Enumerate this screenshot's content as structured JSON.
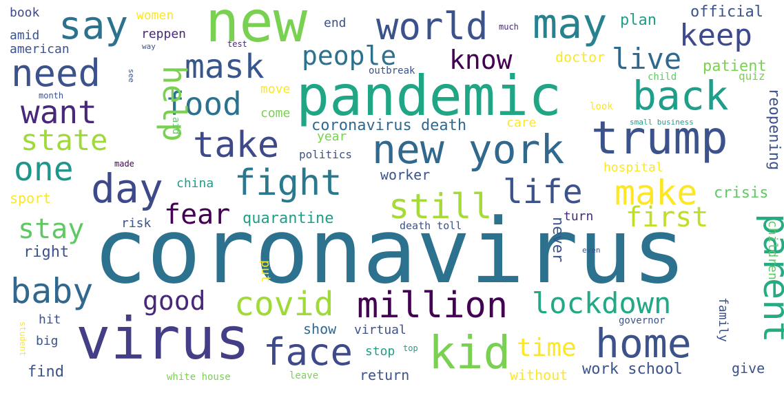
{
  "words": [
    {
      "text": "coronavirus",
      "color": "#2c718e"
    },
    {
      "text": "pandemic",
      "color": "#21a685"
    },
    {
      "text": "virus",
      "color": "#433e85"
    },
    {
      "text": "new",
      "color": "#7ad151"
    },
    {
      "text": "trump",
      "color": "#3b528b"
    },
    {
      "text": "new york",
      "color": "#31688e"
    },
    {
      "text": "million",
      "color": "#440154"
    },
    {
      "text": "kid",
      "color": "#7ad151"
    },
    {
      "text": "home",
      "color": "#3b528b"
    },
    {
      "text": "face",
      "color": "#3e4a89"
    },
    {
      "text": "may",
      "color": "#26828e"
    },
    {
      "text": "say",
      "color": "#2c728e"
    },
    {
      "text": "world",
      "color": "#3b528b"
    },
    {
      "text": "back",
      "color": "#1f9e89"
    },
    {
      "text": "need",
      "color": "#3b528b"
    },
    {
      "text": "mask",
      "color": "#39568c"
    },
    {
      "text": "take",
      "color": "#3e4989"
    },
    {
      "text": "want",
      "color": "#482878"
    },
    {
      "text": "day",
      "color": "#3e4989"
    },
    {
      "text": "one",
      "color": "#1f968b"
    },
    {
      "text": "fight",
      "color": "#2a788e"
    },
    {
      "text": "still",
      "color": "#a5db36"
    },
    {
      "text": "life",
      "color": "#3b528b"
    },
    {
      "text": "make",
      "color": "#fde725"
    },
    {
      "text": "covid",
      "color": "#a0da39"
    },
    {
      "text": "lockdown",
      "color": "#22a884"
    },
    {
      "text": "parent",
      "color": "#25ab82"
    },
    {
      "text": "baby",
      "color": "#31688e"
    },
    {
      "text": "food",
      "color": "#2c728e"
    },
    {
      "text": "keep",
      "color": "#3e4a89"
    },
    {
      "text": "help",
      "color": "#7ad151"
    },
    {
      "text": "people",
      "color": "#2c728e"
    },
    {
      "text": "know",
      "color": "#440154"
    },
    {
      "text": "live",
      "color": "#31688e"
    },
    {
      "text": "state",
      "color": "#a0da39"
    },
    {
      "text": "first",
      "color": "#bddf26"
    },
    {
      "text": "fear",
      "color": "#440154"
    },
    {
      "text": "stay",
      "color": "#5ec962"
    },
    {
      "text": "good",
      "color": "#482878"
    },
    {
      "text": "time",
      "color": "#fde725"
    },
    {
      "text": "book",
      "color": "#3e4a89"
    },
    {
      "text": "amid",
      "color": "#3b528b"
    },
    {
      "text": "american",
      "color": "#3b528b"
    },
    {
      "text": "women",
      "color": "#fde725"
    },
    {
      "text": "reppen",
      "color": "#482878"
    },
    {
      "text": "end",
      "color": "#3b528b"
    },
    {
      "text": "plan",
      "color": "#1f9e89"
    },
    {
      "text": "official",
      "color": "#3b528b"
    },
    {
      "text": "patient",
      "color": "#7ad151"
    },
    {
      "text": "doctor",
      "color": "#fde725"
    },
    {
      "text": "quiz",
      "color": "#7ad151"
    },
    {
      "text": "coronavirus death",
      "color": "#31688e"
    },
    {
      "text": "care",
      "color": "#fde725"
    },
    {
      "text": "year",
      "color": "#7ad151"
    },
    {
      "text": "move",
      "color": "#fde725"
    },
    {
      "text": "come",
      "color": "#7ad151"
    },
    {
      "text": "reopening",
      "color": "#3b528b"
    },
    {
      "text": "worker",
      "color": "#3b528b"
    },
    {
      "text": "hospital",
      "color": "#fde725"
    },
    {
      "text": "china",
      "color": "#1f9e89"
    },
    {
      "text": "crisis",
      "color": "#5ec962"
    },
    {
      "text": "sport",
      "color": "#fde725"
    },
    {
      "text": "risk",
      "color": "#3b528b"
    },
    {
      "text": "quarantine",
      "color": "#1f9e89"
    },
    {
      "text": "turn",
      "color": "#482878"
    },
    {
      "text": "death toll",
      "color": "#3b528b"
    },
    {
      "text": "right",
      "color": "#3b528b"
    },
    {
      "text": "never",
      "color": "#3b528b"
    },
    {
      "text": "children",
      "color": "#5ec962"
    },
    {
      "text": "hit",
      "color": "#3b528b"
    },
    {
      "text": "big",
      "color": "#3b528b"
    },
    {
      "text": "find",
      "color": "#3b528b"
    },
    {
      "text": "show",
      "color": "#31688e"
    },
    {
      "text": "virtual",
      "color": "#3b528b"
    },
    {
      "text": "stop",
      "color": "#1f9e89"
    },
    {
      "text": "return",
      "color": "#3b528b"
    },
    {
      "text": "without",
      "color": "#fde725"
    },
    {
      "text": "work school",
      "color": "#3b528b"
    },
    {
      "text": "give",
      "color": "#3b528b"
    },
    {
      "text": "family",
      "color": "#3b528b"
    },
    {
      "text": "governor",
      "color": "#3b528b"
    },
    {
      "text": "white house",
      "color": "#7ad151"
    },
    {
      "text": "leave",
      "color": "#7ad151"
    },
    {
      "text": "politics",
      "color": "#3b528b"
    },
    {
      "text": "aid",
      "color": "#5ec962"
    },
    {
      "text": "made",
      "color": "#440154"
    },
    {
      "text": "test",
      "color": "#482878"
    },
    {
      "text": "much",
      "color": "#482878"
    },
    {
      "text": "outbreak",
      "color": "#3b528b"
    },
    {
      "text": "child",
      "color": "#5ec962"
    },
    {
      "text": "look",
      "color": "#fde725"
    },
    {
      "text": "small business",
      "color": "#1f9e89"
    },
    {
      "text": "month",
      "color": "#3b528b"
    },
    {
      "text": "put",
      "color": "#fde725"
    },
    {
      "text": "top",
      "color": "#1f9e89"
    },
    {
      "text": "student",
      "color": "#fde725"
    },
    {
      "text": "way",
      "color": "#3b528b"
    },
    {
      "text": "see",
      "color": "#3b528b"
    },
    {
      "text": "even",
      "color": "#3b528b"
    }
  ]
}
